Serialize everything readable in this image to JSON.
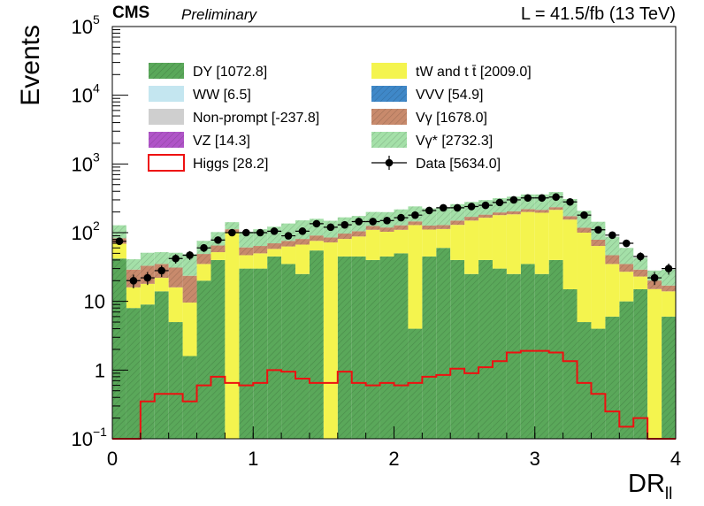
{
  "header": {
    "experiment": "CMS",
    "status": "Preliminary",
    "lumi": "L = 41.5/fb (13 TeV)"
  },
  "chart_data": {
    "type": "bar",
    "stacked": true,
    "xlabel": "DR",
    "xlabel_sub": "ll",
    "ylabel": "Events",
    "xlim": [
      0,
      4
    ],
    "ylim": [
      0.1,
      100000
    ],
    "yscale": "log",
    "grid": false,
    "legend_position": "top",
    "x_ticks": [
      {
        "value": 0,
        "label": "0"
      },
      {
        "value": 1,
        "label": "1"
      },
      {
        "value": 2,
        "label": "2"
      },
      {
        "value": 3,
        "label": "3"
      },
      {
        "value": 4,
        "label": "4"
      }
    ],
    "y_ticks": [
      {
        "value": 0.1,
        "label": "10",
        "exp": "−1"
      },
      {
        "value": 1,
        "label": "1",
        "exp": ""
      },
      {
        "value": 10,
        "label": "10",
        "exp": ""
      },
      {
        "value": 100,
        "label": "10",
        "exp": "2"
      },
      {
        "value": 1000,
        "label": "10",
        "exp": "3"
      },
      {
        "value": 10000,
        "label": "10",
        "exp": "4"
      },
      {
        "value": 100000,
        "label": "10",
        "exp": "5"
      }
    ],
    "bin_edges": [
      0,
      0.1,
      0.2,
      0.3,
      0.4,
      0.5,
      0.6,
      0.7,
      0.8,
      0.9,
      1.0,
      1.1,
      1.2,
      1.3,
      1.4,
      1.5,
      1.6,
      1.7,
      1.8,
      1.9,
      2.0,
      2.1,
      2.2,
      2.3,
      2.4,
      2.5,
      2.6,
      2.7,
      2.8,
      2.9,
      3.0,
      3.1,
      3.2,
      3.3,
      3.4,
      3.5,
      3.6,
      3.7,
      3.8,
      3.9,
      4.0
    ],
    "series": [
      {
        "name": "DY [1072.8]",
        "color": "#5aa85a",
        "hatch": true,
        "values": [
          42,
          8,
          9,
          14,
          5,
          1.6,
          20,
          40,
          0.1,
          30,
          30,
          45,
          35,
          25,
          55,
          0.1,
          45,
          45,
          40,
          45,
          50,
          4,
          45,
          60,
          40,
          25,
          40,
          30,
          25,
          35,
          25,
          40,
          15,
          5,
          4,
          6,
          10,
          15,
          0.1,
          6
        ]
      },
      {
        "name": "tW and t t̄ [2009.0]",
        "color": "#f4f44e",
        "hatch": false,
        "values": [
          27,
          8,
          9,
          8,
          11,
          8,
          15,
          12,
          100,
          17,
          20,
          13,
          28,
          42,
          21,
          72,
          36,
          43,
          70,
          58,
          60,
          125,
          66,
          53,
          90,
          125,
          125,
          150,
          160,
          165,
          170,
          175,
          140,
          95,
          60,
          29,
          17,
          8,
          15,
          8
        ]
      },
      {
        "name": "Vγ [1678.0]",
        "color": "#c88a6c",
        "hatch": true,
        "values": [
          14,
          13,
          15,
          13,
          15,
          14,
          14,
          13,
          12,
          14,
          14,
          12,
          13,
          14,
          15,
          13,
          16,
          17,
          15,
          16,
          18,
          17,
          16,
          16,
          20,
          20,
          18,
          17,
          19,
          20,
          20,
          20,
          19,
          18,
          15,
          12,
          8,
          6,
          5,
          3
        ]
      },
      {
        "name": "Vγ* [2732.3]",
        "color": "#a4e0a8",
        "hatch": true,
        "values": [
          45,
          12,
          18,
          17,
          20,
          25,
          27,
          37,
          30,
          42,
          48,
          52,
          60,
          70,
          68,
          64,
          70,
          70,
          75,
          80,
          90,
          95,
          98,
          105,
          110,
          110,
          115,
          120,
          130,
          140,
          145,
          155,
          135,
          90,
          65,
          40,
          25,
          14,
          8,
          12
        ]
      }
    ],
    "higgs": {
      "name": "Higgs [28.2]",
      "color": "#ee1111",
      "values": [
        0.1,
        0.1,
        0.35,
        0.45,
        0.45,
        0.35,
        0.6,
        0.8,
        0.65,
        0.6,
        0.65,
        1.0,
        0.95,
        0.75,
        0.65,
        0.65,
        0.95,
        0.65,
        0.6,
        0.65,
        0.6,
        0.65,
        0.8,
        0.85,
        1.05,
        0.9,
        1.1,
        1.35,
        1.8,
        1.9,
        1.9,
        1.8,
        1.35,
        0.65,
        0.45,
        0.25,
        0.15,
        0.2,
        0.1,
        0.1
      ]
    },
    "data": {
      "name": "Data [5634.0]",
      "values": [
        75,
        20,
        22,
        28,
        42,
        47,
        60,
        78,
        100,
        100,
        100,
        105,
        90,
        105,
        135,
        120,
        130,
        145,
        145,
        150,
        165,
        180,
        210,
        230,
        230,
        240,
        250,
        275,
        300,
        320,
        320,
        330,
        280,
        180,
        110,
        92,
        70,
        45,
        22,
        30
      ],
      "errors": [
        9,
        4.5,
        4.7,
        5.3,
        6.5,
        6.9,
        7.7,
        8.8,
        10,
        10,
        10,
        10.2,
        9.5,
        10.2,
        11.6,
        11,
        11.4,
        12,
        12,
        12.2,
        12.8,
        13.4,
        14.5,
        15.2,
        15.2,
        15.5,
        15.8,
        16.6,
        17.3,
        17.9,
        17.9,
        18.2,
        16.7,
        13.4,
        10.5,
        9.6,
        8.4,
        6.7,
        4.7,
        5.5
      ]
    },
    "legend": [
      {
        "label": "DY [1072.8]",
        "color": "#5aa85a",
        "style": "fill-hatch",
        "col": 0,
        "row": 0
      },
      {
        "label": "WW [6.5]",
        "color": "#c4e6f0",
        "style": "fill",
        "col": 0,
        "row": 1
      },
      {
        "label": "Non-prompt [-237.8]",
        "color": "#cfcfcf",
        "style": "fill",
        "col": 0,
        "row": 2
      },
      {
        "label": "VZ [14.3]",
        "color": "#b055c8",
        "style": "fill-hatch",
        "col": 0,
        "row": 3
      },
      {
        "label": "Higgs [28.2]",
        "color": "#ee1111",
        "style": "line-box",
        "col": 0,
        "row": 4
      },
      {
        "label": "tW and t t̄ [2009.0]",
        "color": "#f4f44e",
        "style": "fill",
        "col": 1,
        "row": 0
      },
      {
        "label": "VVV [54.9]",
        "color": "#3f88c8",
        "style": "fill-hatch",
        "col": 1,
        "row": 1
      },
      {
        "label": "Vγ [1678.0]",
        "color": "#c88a6c",
        "style": "fill-hatch",
        "col": 1,
        "row": 2
      },
      {
        "label": "Vγ* [2732.3]",
        "color": "#a4e0a8",
        "style": "fill-hatch",
        "col": 1,
        "row": 3
      },
      {
        "label": "Data [5634.0]",
        "color": "#000000",
        "style": "marker",
        "col": 1,
        "row": 4
      }
    ]
  }
}
